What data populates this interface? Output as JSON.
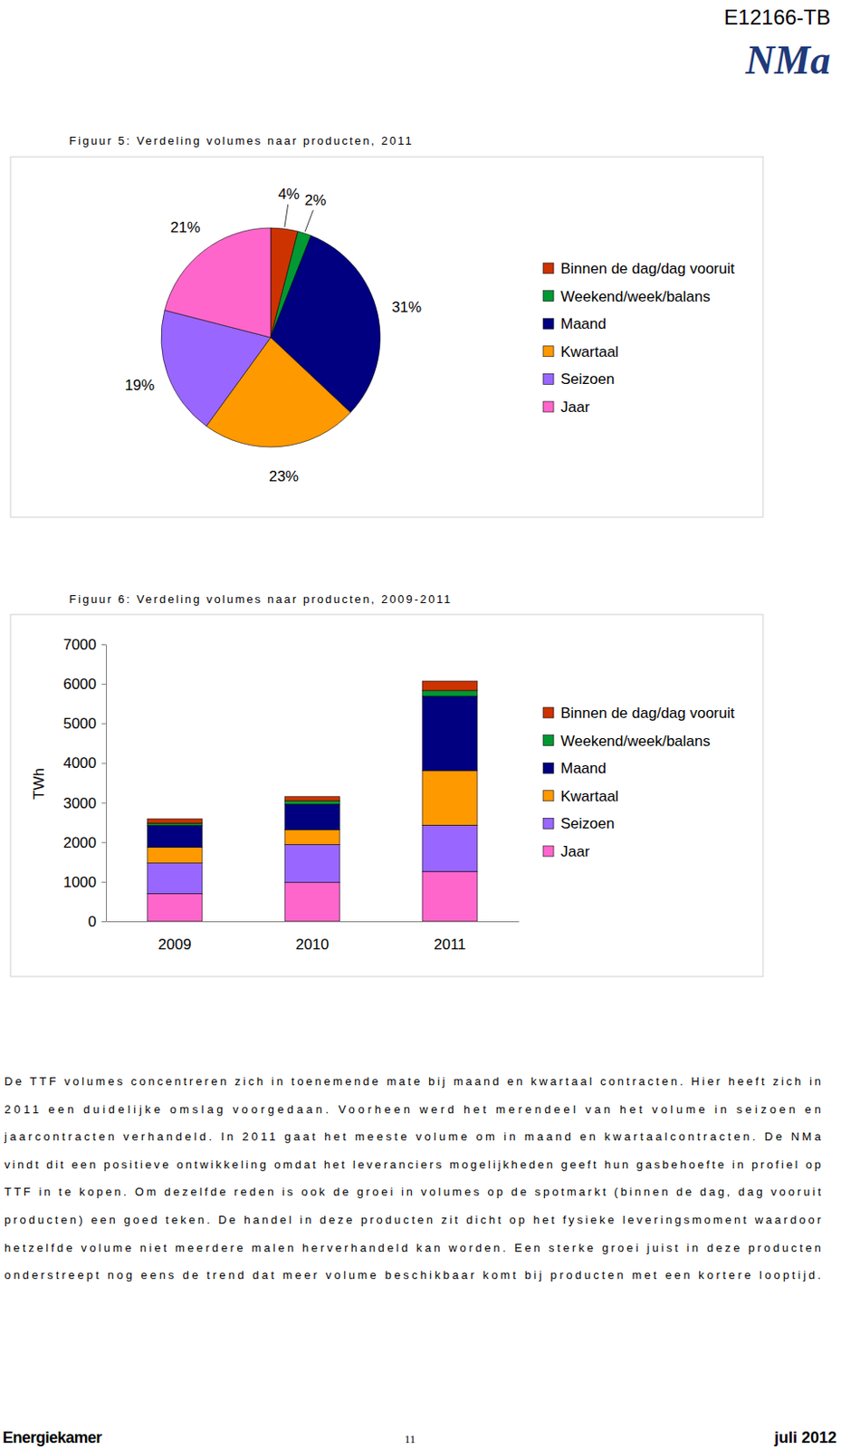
{
  "header": {
    "code": "E12166-TB",
    "logo": "NMa"
  },
  "chart_data": [
    {
      "type": "pie",
      "title": "Figuur 5: Verdeling volumes naar producten, 2011",
      "categories": [
        "Binnen de dag/dag vooruit",
        "Weekend/week/balans",
        "Maand",
        "Kwartaal",
        "Seizoen",
        "Jaar"
      ],
      "values": [
        4,
        2,
        31,
        23,
        19,
        21
      ],
      "value_labels": [
        "4%",
        "2%",
        "31%",
        "23%",
        "19%",
        "21%"
      ],
      "colors": [
        "#cc3300",
        "#009933",
        "#000080",
        "#ff9900",
        "#9966ff",
        "#ff66cc"
      ],
      "data_labels": true,
      "legend": "right"
    },
    {
      "type": "bar",
      "title": "Figuur 6: Verdeling volumes naar producten, 2009-2011",
      "y_label": "TWh",
      "categories": [
        "2009",
        "2010",
        "2011"
      ],
      "series": [
        {
          "name": "Binnen de dag/dag vooruit",
          "color": "#cc3300",
          "values": [
            110,
            110,
            240
          ]
        },
        {
          "name": "Weekend/week/balans",
          "color": "#009933",
          "values": [
            60,
            80,
            140
          ]
        },
        {
          "name": "Maand",
          "color": "#000080",
          "values": [
            550,
            650,
            1880
          ]
        },
        {
          "name": "Kwartaal",
          "color": "#ff9900",
          "values": [
            400,
            370,
            1380
          ]
        },
        {
          "name": "Seizoen",
          "color": "#9966ff",
          "values": [
            770,
            960,
            1170
          ]
        },
        {
          "name": "Jaar",
          "color": "#ff66cc",
          "values": [
            700,
            980,
            1260
          ]
        }
      ],
      "ylim": [
        0,
        7000
      ],
      "yticks": [
        0,
        1000,
        2000,
        3000,
        4000,
        5000,
        6000,
        7000
      ],
      "stacked": true,
      "grid": false,
      "legend": "right"
    }
  ],
  "paragraph": [
    "De TTF volumes concentreren zich in toenemende mate bij maand en kwartaal contracten. Hier heeft zich in",
    "2011 een duidelijke omslag voorgedaan. Voorheen werd het merendeel van het volume in seizoen en",
    "jaarcontracten verhandeld. In 2011 gaat het meeste volume om in maand en kwartaalcontracten. De NMa",
    "vindt dit een positieve ontwikkeling omdat het leveranciers mogelijkheden geeft hun gasbehoefte in profiel op",
    "TTF in te kopen. Om dezelfde reden is ook de groei in volumes op de spotmarkt (binnen de dag, dag vooruit",
    "producten) een goed teken. De handel in deze producten zit dicht op het fysieke leveringsmoment waardoor",
    "hetzelfde volume niet meerdere malen herverhandeld kan worden. Een sterke groei juist in deze producten",
    "onderstreept nog eens de trend dat meer volume beschikbaar komt bij producten met een kortere looptijd."
  ],
  "footer": {
    "left": "Energiekamer",
    "page": "11",
    "right": "juli 2012"
  }
}
